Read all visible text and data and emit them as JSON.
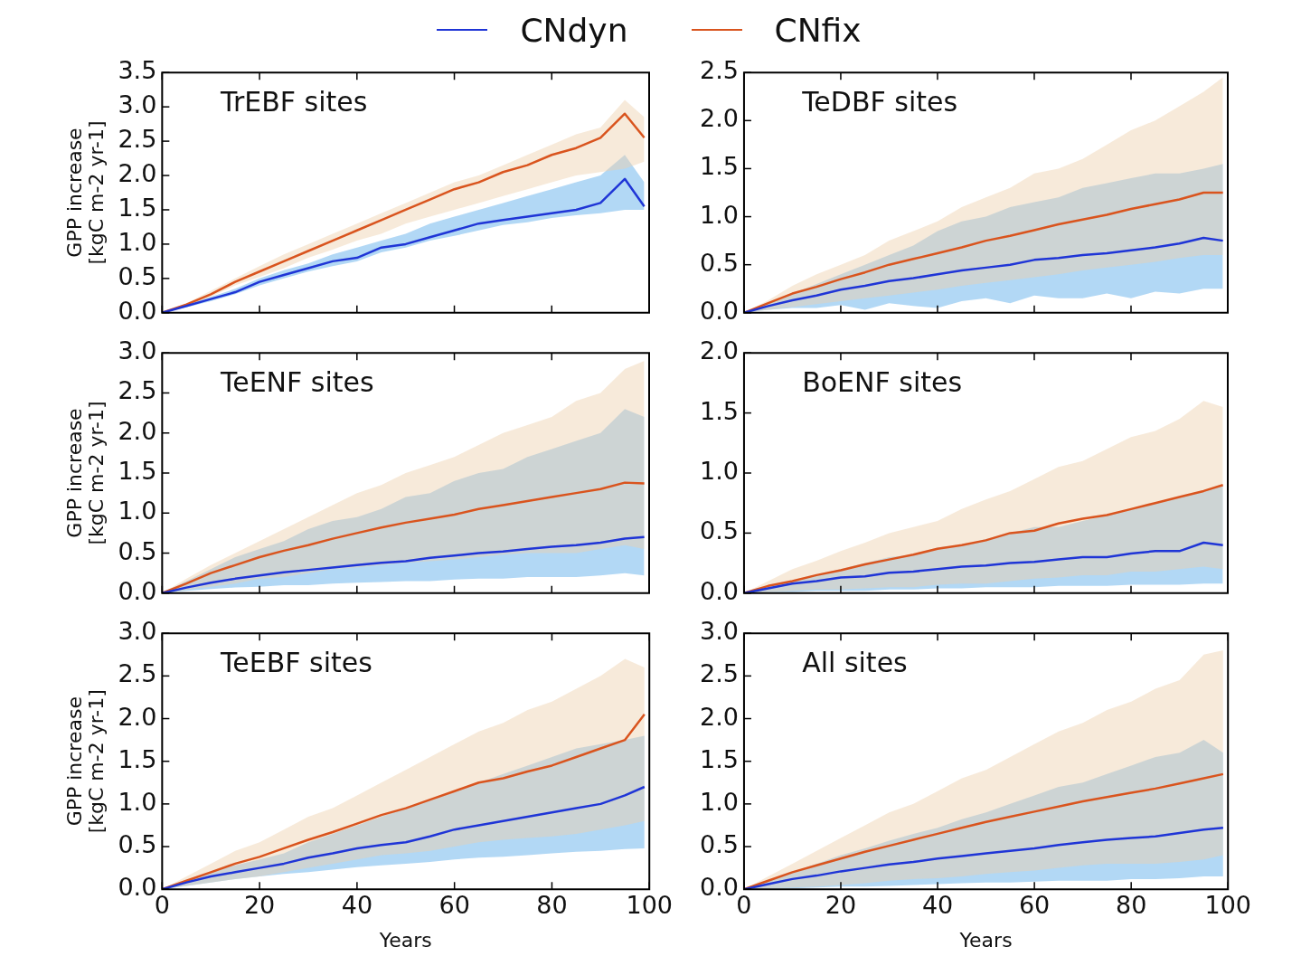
{
  "chart_data": [
    {
      "type": "line",
      "title": "TrEBF sites",
      "ylabel": "GPP increase\n[kgC m-2 yr-1]",
      "legend": "top",
      "grid": false,
      "tick_labels": "y",
      "x": [
        0,
        5,
        10,
        15,
        20,
        25,
        30,
        35,
        40,
        45,
        50,
        55,
        60,
        65,
        70,
        75,
        80,
        85,
        90,
        95,
        99
      ],
      "xlim": [
        0,
        100
      ],
      "xticks": [
        0,
        20,
        40,
        60,
        80,
        100
      ],
      "ylim": [
        0,
        3.5
      ],
      "yticks": [
        {
          "value": 0,
          "label": "0.0"
        },
        0.5,
        {
          "value": 1,
          "label": "1.0"
        },
        1.5,
        {
          "value": 2,
          "label": "2.0"
        },
        2.5,
        {
          "value": 3,
          "label": "3.0"
        },
        3.5
      ],
      "series": [
        {
          "name": "CNdyn",
          "color": "#1f35d6",
          "values": [
            0,
            0.1,
            0.2,
            0.3,
            0.45,
            0.55,
            0.65,
            0.75,
            0.8,
            0.95,
            1.0,
            1.1,
            1.2,
            1.3,
            1.35,
            1.4,
            1.45,
            1.5,
            1.6,
            1.95,
            1.55
          ],
          "lower": [
            0,
            0.08,
            0.17,
            0.27,
            0.4,
            0.5,
            0.6,
            0.68,
            0.75,
            0.88,
            0.95,
            1.05,
            1.12,
            1.2,
            1.28,
            1.32,
            1.38,
            1.42,
            1.45,
            1.5,
            1.5
          ],
          "upper": [
            0,
            0.12,
            0.23,
            0.35,
            0.5,
            0.62,
            0.72,
            0.85,
            0.95,
            1.05,
            1.15,
            1.3,
            1.4,
            1.5,
            1.6,
            1.7,
            1.8,
            1.9,
            2.0,
            2.3,
            1.9
          ]
        },
        {
          "name": "CNfix",
          "color": "#d9541e",
          "values": [
            0,
            0.12,
            0.27,
            0.45,
            0.6,
            0.75,
            0.9,
            1.05,
            1.2,
            1.35,
            1.5,
            1.65,
            1.8,
            1.9,
            2.05,
            2.15,
            2.3,
            2.4,
            2.55,
            2.9,
            2.55
          ],
          "lower": [
            0,
            0.1,
            0.23,
            0.4,
            0.52,
            0.65,
            0.8,
            0.92,
            1.05,
            1.15,
            1.3,
            1.4,
            1.5,
            1.6,
            1.7,
            1.8,
            1.9,
            2.0,
            2.05,
            2.1,
            2.2
          ],
          "upper": [
            0,
            0.14,
            0.32,
            0.5,
            0.68,
            0.85,
            1.0,
            1.15,
            1.3,
            1.45,
            1.6,
            1.75,
            1.9,
            2.0,
            2.15,
            2.3,
            2.45,
            2.6,
            2.7,
            3.1,
            2.85
          ]
        }
      ]
    },
    {
      "type": "line",
      "title": "TeDBF sites",
      "grid": false,
      "tick_labels": "y",
      "x": [
        0,
        5,
        10,
        15,
        20,
        25,
        30,
        35,
        40,
        45,
        50,
        55,
        60,
        65,
        70,
        75,
        80,
        85,
        90,
        95,
        99
      ],
      "xlim": [
        0,
        100
      ],
      "xticks": [
        0,
        20,
        40,
        60,
        80,
        100
      ],
      "ylim": [
        0,
        2.5
      ],
      "yticks": [
        {
          "value": 0,
          "label": "0.0"
        },
        0.5,
        {
          "value": 1,
          "label": "1.0"
        },
        1.5,
        {
          "value": 2,
          "label": "2.0"
        },
        2.5
      ],
      "series": [
        {
          "color": "#1f35d6",
          "values": [
            0,
            0.07,
            0.13,
            0.18,
            0.24,
            0.28,
            0.33,
            0.36,
            0.4,
            0.44,
            0.47,
            0.5,
            0.55,
            0.57,
            0.6,
            0.62,
            0.65,
            0.68,
            0.72,
            0.78,
            0.75
          ],
          "lower": [
            0,
            0.03,
            0.05,
            0.05,
            0.08,
            0.03,
            0.1,
            0.07,
            0.05,
            0.12,
            0.15,
            0.1,
            0.18,
            0.15,
            0.15,
            0.2,
            0.15,
            0.22,
            0.2,
            0.25,
            0.25
          ],
          "upper": [
            0,
            0.1,
            0.2,
            0.3,
            0.4,
            0.5,
            0.6,
            0.7,
            0.85,
            0.95,
            1.0,
            1.1,
            1.15,
            1.2,
            1.3,
            1.35,
            1.4,
            1.45,
            1.45,
            1.5,
            1.55
          ]
        },
        {
          "color": "#d9541e",
          "values": [
            0,
            0.1,
            0.2,
            0.27,
            0.35,
            0.42,
            0.5,
            0.56,
            0.62,
            0.68,
            0.75,
            0.8,
            0.86,
            0.92,
            0.97,
            1.02,
            1.08,
            1.13,
            1.18,
            1.25,
            1.25
          ],
          "lower": [
            0,
            0.03,
            0.06,
            0.09,
            0.12,
            0.15,
            0.18,
            0.21,
            0.24,
            0.28,
            0.31,
            0.34,
            0.37,
            0.4,
            0.44,
            0.47,
            0.5,
            0.53,
            0.57,
            0.6,
            0.6
          ],
          "upper": [
            0,
            0.13,
            0.28,
            0.4,
            0.5,
            0.6,
            0.75,
            0.85,
            0.95,
            1.1,
            1.2,
            1.3,
            1.45,
            1.5,
            1.6,
            1.75,
            1.9,
            2.0,
            2.15,
            2.3,
            2.45
          ]
        }
      ]
    },
    {
      "type": "line",
      "title": "TeENF sites",
      "ylabel": "GPP increase\n[kgC m-2 yr-1]",
      "grid": false,
      "tick_labels": "y",
      "x": [
        0,
        5,
        10,
        15,
        20,
        25,
        30,
        35,
        40,
        45,
        50,
        55,
        60,
        65,
        70,
        75,
        80,
        85,
        90,
        95,
        99
      ],
      "xlim": [
        0,
        100
      ],
      "xticks": [
        0,
        20,
        40,
        60,
        80,
        100
      ],
      "ylim": [
        0,
        3
      ],
      "yticks": [
        {
          "value": 0,
          "label": "0.0"
        },
        0.5,
        {
          "value": 1,
          "label": "1.0"
        },
        1.5,
        {
          "value": 2,
          "label": "2.0"
        },
        2.5,
        {
          "value": 3,
          "label": "3.0"
        }
      ],
      "series": [
        {
          "color": "#1f35d6",
          "values": [
            0,
            0.07,
            0.13,
            0.18,
            0.22,
            0.26,
            0.29,
            0.32,
            0.35,
            0.38,
            0.4,
            0.44,
            0.47,
            0.5,
            0.52,
            0.55,
            0.58,
            0.6,
            0.63,
            0.68,
            0.7
          ],
          "lower": [
            0,
            0.03,
            0.05,
            0.07,
            0.08,
            0.1,
            0.1,
            0.12,
            0.13,
            0.14,
            0.15,
            0.15,
            0.17,
            0.18,
            0.18,
            0.2,
            0.2,
            0.2,
            0.22,
            0.25,
            0.22
          ],
          "upper": [
            0,
            0.15,
            0.3,
            0.45,
            0.55,
            0.65,
            0.8,
            0.9,
            0.95,
            1.05,
            1.2,
            1.25,
            1.4,
            1.5,
            1.55,
            1.7,
            1.8,
            1.9,
            2.0,
            2.3,
            2.2
          ]
        },
        {
          "color": "#d9541e",
          "values": [
            0,
            0.12,
            0.25,
            0.35,
            0.45,
            0.53,
            0.6,
            0.68,
            0.75,
            0.82,
            0.88,
            0.93,
            0.98,
            1.05,
            1.1,
            1.15,
            1.2,
            1.25,
            1.3,
            1.38,
            1.37
          ],
          "lower": [
            0,
            0.04,
            0.08,
            0.12,
            0.18,
            0.2,
            0.25,
            0.3,
            0.32,
            0.35,
            0.38,
            0.4,
            0.42,
            0.45,
            0.48,
            0.5,
            0.5,
            0.5,
            0.55,
            0.6,
            0.55
          ],
          "upper": [
            0,
            0.18,
            0.35,
            0.5,
            0.65,
            0.8,
            0.95,
            1.1,
            1.25,
            1.35,
            1.5,
            1.6,
            1.7,
            1.85,
            2.0,
            2.1,
            2.2,
            2.4,
            2.5,
            2.8,
            2.9
          ]
        }
      ]
    },
    {
      "type": "line",
      "title": "BoENF sites",
      "grid": false,
      "tick_labels": "y",
      "x": [
        0,
        5,
        10,
        15,
        20,
        25,
        30,
        35,
        40,
        45,
        50,
        55,
        60,
        65,
        70,
        75,
        80,
        85,
        90,
        95,
        99
      ],
      "xlim": [
        0,
        100
      ],
      "xticks": [
        0,
        20,
        40,
        60,
        80,
        100
      ],
      "ylim": [
        0,
        2
      ],
      "yticks": [
        {
          "value": 0,
          "label": "0.0"
        },
        0.5,
        {
          "value": 1,
          "label": "1.0"
        },
        1.5,
        {
          "value": 2,
          "label": "2.0"
        }
      ],
      "series": [
        {
          "color": "#1f35d6",
          "values": [
            0,
            0.04,
            0.08,
            0.1,
            0.13,
            0.14,
            0.17,
            0.18,
            0.2,
            0.22,
            0.23,
            0.25,
            0.26,
            0.28,
            0.3,
            0.3,
            0.33,
            0.35,
            0.35,
            0.42,
            0.4
          ],
          "lower": [
            0,
            0.01,
            0.01,
            0.02,
            0.02,
            0.02,
            0.03,
            0.03,
            0.04,
            0.04,
            0.05,
            0.05,
            0.05,
            0.06,
            0.06,
            0.06,
            0.07,
            0.07,
            0.07,
            0.08,
            0.08
          ],
          "upper": [
            0,
            0.05,
            0.1,
            0.15,
            0.2,
            0.25,
            0.3,
            0.32,
            0.38,
            0.4,
            0.45,
            0.5,
            0.55,
            0.55,
            0.6,
            0.65,
            0.7,
            0.75,
            0.8,
            0.85,
            0.9
          ]
        },
        {
          "color": "#d9541e",
          "values": [
            0,
            0.06,
            0.1,
            0.15,
            0.19,
            0.24,
            0.28,
            0.32,
            0.37,
            0.4,
            0.44,
            0.5,
            0.52,
            0.58,
            0.62,
            0.65,
            0.7,
            0.75,
            0.8,
            0.85,
            0.9
          ],
          "lower": [
            0,
            0.01,
            0.02,
            0.03,
            0.03,
            0.04,
            0.05,
            0.05,
            0.07,
            0.08,
            0.08,
            0.1,
            0.12,
            0.13,
            0.15,
            0.15,
            0.18,
            0.18,
            0.2,
            0.22,
            0.2
          ],
          "upper": [
            0,
            0.1,
            0.2,
            0.27,
            0.35,
            0.42,
            0.5,
            0.55,
            0.6,
            0.7,
            0.78,
            0.85,
            0.95,
            1.05,
            1.1,
            1.2,
            1.3,
            1.35,
            1.45,
            1.6,
            1.55
          ]
        }
      ]
    },
    {
      "type": "line",
      "title": "TeEBF sites",
      "ylabel": "GPP increase\n[kgC m-2 yr-1]",
      "xlabel": "Years",
      "grid": false,
      "x": [
        0,
        5,
        10,
        15,
        20,
        25,
        30,
        35,
        40,
        45,
        50,
        55,
        60,
        65,
        70,
        75,
        80,
        85,
        90,
        95,
        99
      ],
      "xlim": [
        0,
        100
      ],
      "xticks": [
        0,
        20,
        40,
        60,
        80,
        100
      ],
      "ylim": [
        0,
        3
      ],
      "yticks": [
        {
          "value": 0,
          "label": "0.0"
        },
        0.5,
        {
          "value": 1,
          "label": "1.0"
        },
        1.5,
        {
          "value": 2,
          "label": "2.0"
        },
        2.5,
        {
          "value": 3,
          "label": "3.0"
        }
      ],
      "series": [
        {
          "color": "#1f35d6",
          "values": [
            0,
            0.08,
            0.15,
            0.2,
            0.25,
            0.3,
            0.37,
            0.42,
            0.48,
            0.52,
            0.55,
            0.62,
            0.7,
            0.75,
            0.8,
            0.85,
            0.9,
            0.95,
            1.0,
            1.1,
            1.2
          ],
          "lower": [
            0,
            0.04,
            0.08,
            0.12,
            0.15,
            0.18,
            0.2,
            0.23,
            0.26,
            0.28,
            0.3,
            0.32,
            0.35,
            0.37,
            0.38,
            0.4,
            0.42,
            0.44,
            0.45,
            0.47,
            0.48
          ],
          "upper": [
            0,
            0.1,
            0.2,
            0.28,
            0.35,
            0.42,
            0.55,
            0.65,
            0.75,
            0.85,
            0.95,
            1.05,
            1.15,
            1.25,
            1.35,
            1.45,
            1.55,
            1.65,
            1.7,
            1.75,
            1.8
          ]
        },
        {
          "color": "#d9541e",
          "values": [
            0,
            0.1,
            0.2,
            0.3,
            0.38,
            0.48,
            0.58,
            0.67,
            0.77,
            0.87,
            0.95,
            1.05,
            1.15,
            1.25,
            1.3,
            1.38,
            1.45,
            1.55,
            1.65,
            1.75,
            2.05
          ],
          "lower": [
            0,
            0.04,
            0.08,
            0.12,
            0.15,
            0.2,
            0.25,
            0.3,
            0.35,
            0.4,
            0.42,
            0.45,
            0.5,
            0.55,
            0.58,
            0.6,
            0.62,
            0.65,
            0.7,
            0.75,
            0.8
          ],
          "upper": [
            0,
            0.15,
            0.3,
            0.45,
            0.55,
            0.7,
            0.85,
            0.95,
            1.1,
            1.25,
            1.4,
            1.55,
            1.7,
            1.85,
            1.95,
            2.1,
            2.2,
            2.35,
            2.5,
            2.7,
            2.6
          ]
        }
      ]
    },
    {
      "type": "line",
      "title": "All sites",
      "xlabel": "Years",
      "grid": false,
      "x": [
        0,
        5,
        10,
        15,
        20,
        25,
        30,
        35,
        40,
        45,
        50,
        55,
        60,
        65,
        70,
        75,
        80,
        85,
        90,
        95,
        99
      ],
      "xlim": [
        0,
        100
      ],
      "xticks": [
        0,
        20,
        40,
        60,
        80,
        100
      ],
      "ylim": [
        0,
        3
      ],
      "yticks": [
        {
          "value": 0,
          "label": "0.0"
        },
        0.5,
        {
          "value": 1,
          "label": "1.0"
        },
        1.5,
        {
          "value": 2,
          "label": "2.0"
        },
        2.5,
        {
          "value": 3,
          "label": "3.0"
        }
      ],
      "series": [
        {
          "color": "#1f35d6",
          "values": [
            0,
            0.06,
            0.12,
            0.16,
            0.21,
            0.25,
            0.29,
            0.32,
            0.36,
            0.39,
            0.42,
            0.45,
            0.48,
            0.52,
            0.55,
            0.58,
            0.6,
            0.62,
            0.66,
            0.7,
            0.72
          ],
          "lower": [
            0,
            0.01,
            0.01,
            0.02,
            0.03,
            0.03,
            0.04,
            0.05,
            0.06,
            0.07,
            0.08,
            0.08,
            0.09,
            0.1,
            0.1,
            0.1,
            0.12,
            0.12,
            0.13,
            0.15,
            0.15
          ],
          "upper": [
            0,
            0.1,
            0.2,
            0.3,
            0.4,
            0.48,
            0.57,
            0.65,
            0.72,
            0.82,
            0.9,
            1.0,
            1.1,
            1.2,
            1.25,
            1.35,
            1.45,
            1.55,
            1.6,
            1.75,
            1.6
          ]
        },
        {
          "color": "#d9541e",
          "values": [
            0,
            0.1,
            0.2,
            0.28,
            0.36,
            0.44,
            0.51,
            0.58,
            0.65,
            0.72,
            0.79,
            0.85,
            0.91,
            0.97,
            1.03,
            1.08,
            1.13,
            1.18,
            1.24,
            1.3,
            1.35
          ],
          "lower": [
            0,
            0.01,
            0.02,
            0.03,
            0.05,
            0.07,
            0.1,
            0.12,
            0.13,
            0.15,
            0.18,
            0.2,
            0.22,
            0.25,
            0.28,
            0.3,
            0.3,
            0.3,
            0.32,
            0.35,
            0.4
          ],
          "upper": [
            0,
            0.15,
            0.3,
            0.45,
            0.6,
            0.75,
            0.9,
            1.0,
            1.15,
            1.3,
            1.4,
            1.55,
            1.7,
            1.85,
            1.95,
            2.1,
            2.2,
            2.35,
            2.45,
            2.75,
            2.8
          ]
        }
      ]
    }
  ]
}
